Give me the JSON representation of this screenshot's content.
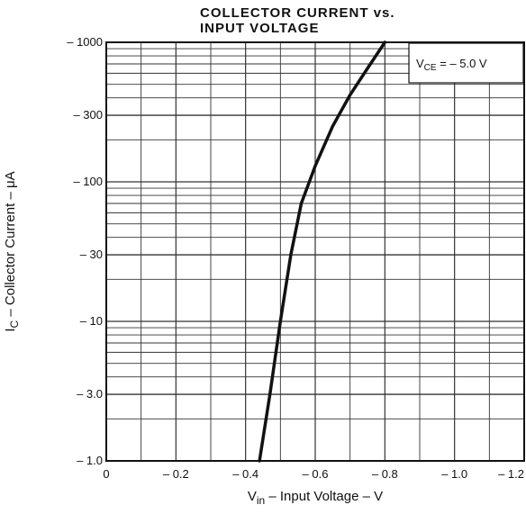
{
  "chart_data": {
    "type": "line",
    "title_line1": "COLLECTOR CURRENT vs.",
    "title_line2": "INPUT VOLTAGE",
    "xlabel": {
      "main": "V",
      "sub": "in",
      "rest": " – Input Voltage – V"
    },
    "ylabel": {
      "pre": "I",
      "sub": "C",
      "rest": " – Collector Current – μA"
    },
    "x_scale": "linear",
    "y_scale": "log",
    "xlim": [
      0,
      -1.2
    ],
    "ylim": [
      -1.0,
      -1000
    ],
    "x_ticks": [
      {
        "v": 0,
        "label": "0"
      },
      {
        "v": -0.2,
        "label": "– 0.2"
      },
      {
        "v": -0.4,
        "label": "– 0.4"
      },
      {
        "v": -0.6,
        "label": "– 0.6"
      },
      {
        "v": -0.8,
        "label": "– 0.8"
      },
      {
        "v": -1.0,
        "label": "– 1.0"
      },
      {
        "v": -1.2,
        "label": "– 1.2"
      }
    ],
    "y_ticks": [
      {
        "v": -1000,
        "label": "– 1000"
      },
      {
        "v": -300,
        "label": "– 300"
      },
      {
        "v": -100,
        "label": "– 100"
      },
      {
        "v": -30,
        "label": "– 30"
      },
      {
        "v": -10,
        "label": "– 10"
      },
      {
        "v": -3.0,
        "label": "– 3.0"
      },
      {
        "v": -1.0,
        "label": "– 1.0"
      }
    ],
    "grid": true,
    "annotation": {
      "main": "V",
      "sub": "CE",
      "rest": " = – 5.0 V",
      "placement": "top-right"
    },
    "series": [
      {
        "x": [
          -0.44,
          -0.47,
          -0.5,
          -0.53,
          -0.56,
          -0.6,
          -0.65,
          -0.7,
          -0.75,
          -0.8
        ],
        "y": [
          -1,
          -3,
          -10,
          -30,
          -70,
          -130,
          -250,
          -420,
          -650,
          -1000
        ]
      }
    ]
  }
}
